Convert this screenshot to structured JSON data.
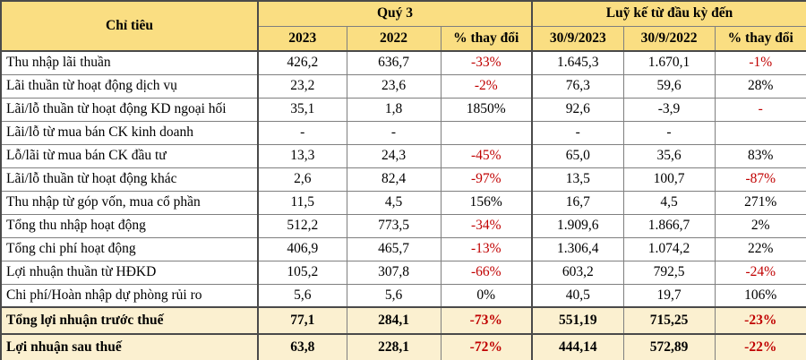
{
  "colors": {
    "header_bg": "#FADE82",
    "bold_row_bg": "#FBF0D0",
    "negative": "#C00000",
    "text": "#000000",
    "border_thin": "#7F7F7F",
    "border_thick": "#4A4A4A"
  },
  "table": {
    "header": {
      "criteria": "Chỉ tiêu",
      "group_q3": "Quý 3",
      "group_ytd": "Luỹ kế từ đầu kỳ đến",
      "sub": [
        "2023",
        "2022",
        "% thay đổi",
        "30/9/2023",
        "30/9/2022",
        "% thay đổi"
      ]
    },
    "rows": [
      {
        "bold": false,
        "cells": [
          "Thu nhập lãi thuần",
          "426,2",
          "636,7",
          "-33%",
          "1.645,3",
          "1.670,1",
          "-1%"
        ]
      },
      {
        "bold": false,
        "cells": [
          "Lãi thuần từ hoạt động dịch vụ",
          "23,2",
          "23,6",
          "-2%",
          "76,3",
          "59,6",
          "28%"
        ]
      },
      {
        "bold": false,
        "cells": [
          "Lãi/lỗ thuần từ hoạt động KD ngoại hối",
          "35,1",
          "1,8",
          "1850%",
          "92,6",
          "-3,9",
          "-"
        ]
      },
      {
        "bold": false,
        "cells": [
          "Lãi/lỗ từ mua bán CK kinh doanh",
          "-",
          "-",
          "",
          "-",
          "-",
          ""
        ]
      },
      {
        "bold": false,
        "cells": [
          "Lỗ/lãi từ mua bán CK đầu tư",
          "13,3",
          "24,3",
          "-45%",
          "65,0",
          "35,6",
          "83%"
        ]
      },
      {
        "bold": false,
        "cells": [
          "Lãi/lỗ thuần từ hoạt động khác",
          "2,6",
          "82,4",
          "-97%",
          "13,5",
          "100,7",
          "-87%"
        ]
      },
      {
        "bold": false,
        "cells": [
          "Thu nhập từ góp vốn, mua cổ phần",
          "11,5",
          "4,5",
          "156%",
          "16,7",
          "4,5",
          "271%"
        ]
      },
      {
        "bold": false,
        "cells": [
          "Tổng thu nhập hoạt động",
          "512,2",
          "773,5",
          "-34%",
          "1.909,6",
          "1.866,7",
          "2%"
        ]
      },
      {
        "bold": false,
        "cells": [
          "Tổng chi phí hoạt động",
          "406,9",
          "465,7",
          "-13%",
          "1.306,4",
          "1.074,2",
          "22%"
        ]
      },
      {
        "bold": false,
        "cells": [
          "Lợi nhuận thuần từ HĐKD",
          "105,2",
          "307,8",
          "-66%",
          "603,2",
          "792,5",
          "-24%"
        ]
      },
      {
        "bold": false,
        "cells": [
          "Chi phí/Hoàn nhập dự phòng rủi ro",
          "5,6",
          "5,6",
          "0%",
          "40,5",
          "19,7",
          "106%"
        ]
      },
      {
        "bold": true,
        "cells": [
          "Tổng lợi nhuận trước thuế",
          "77,1",
          "284,1",
          "-73%",
          "551,19",
          "715,25",
          "-23%"
        ]
      },
      {
        "bold": true,
        "cells": [
          "Lợi nhuận sau thuế",
          "63,8",
          "228,1",
          "-72%",
          "444,14",
          "572,89",
          "-22%"
        ]
      }
    ]
  }
}
